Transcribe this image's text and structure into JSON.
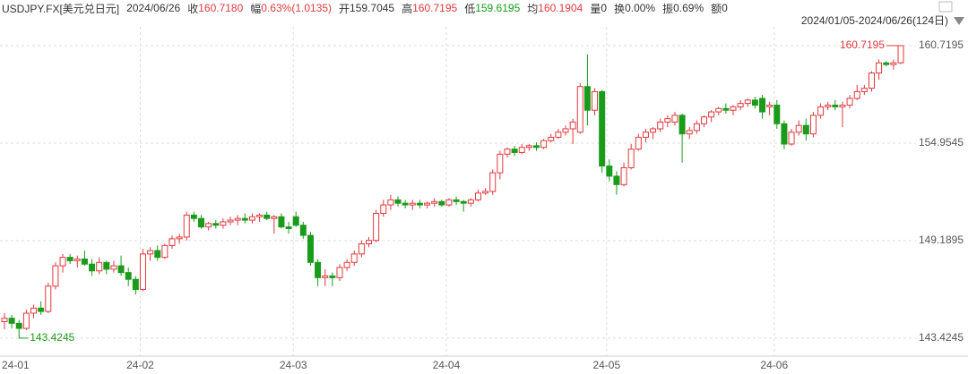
{
  "chart_data": {
    "type": "candlestick",
    "header": {
      "title": "USDJPY.FX[美元兑日元]",
      "date": "2024/06/26",
      "close_label": "收",
      "close": "160.7180",
      "amp_label": "幅",
      "amp": "0.63%(1.0135)",
      "open_label": "开",
      "high_label": "高",
      "low_label": "低",
      "avg_label": "均",
      "avg": "160.1904",
      "vol_label": "量",
      "vol": "0",
      "turn_label": "换",
      "turn": "0.00%",
      "swing_label": "振",
      "swing": "0.69%",
      "amount_label": "额",
      "amount": "0"
    },
    "range_label": "2024/01/05-2024/06/26(124日)",
    "up_color": "#e0393e",
    "down_color": "#1a9b1a",
    "ylim": [
      142.52,
      161.83
    ],
    "yticks": [
      160.7195,
      154.9545,
      149.1895,
      143.4245
    ],
    "grid": true,
    "categories": [
      "24-01",
      null,
      null,
      null,
      null,
      null,
      null,
      null,
      null,
      null,
      null,
      null,
      null,
      null,
      null,
      null,
      null,
      null,
      null,
      "24-02",
      null,
      null,
      null,
      null,
      null,
      null,
      null,
      null,
      null,
      null,
      null,
      null,
      null,
      null,
      null,
      null,
      null,
      null,
      null,
      null,
      "24-03",
      null,
      null,
      null,
      null,
      null,
      null,
      null,
      null,
      null,
      null,
      null,
      null,
      null,
      null,
      null,
      null,
      null,
      null,
      null,
      null,
      "24-04",
      null,
      null,
      null,
      null,
      null,
      null,
      null,
      null,
      null,
      null,
      null,
      null,
      null,
      null,
      null,
      null,
      null,
      null,
      null,
      null,
      null,
      "24-05",
      null,
      null,
      null,
      null,
      null,
      null,
      null,
      null,
      null,
      null,
      null,
      null,
      null,
      null,
      null,
      null,
      null,
      null,
      null,
      null,
      null,
      null,
      "24-06",
      null,
      null,
      null,
      null,
      null,
      null,
      null,
      null,
      null,
      null,
      null,
      null,
      null,
      null,
      null,
      null,
      null
    ],
    "ohlc": [
      [
        144.4,
        144.9,
        143.95,
        144.6
      ],
      [
        144.6,
        144.8,
        144.0,
        144.3
      ],
      [
        144.3,
        144.5,
        143.4245,
        144.0
      ],
      [
        144.0,
        145.1,
        143.9,
        144.9
      ],
      [
        144.9,
        145.4,
        144.6,
        145.2
      ],
      [
        145.2,
        145.6,
        144.8,
        145.0
      ],
      [
        145.0,
        146.7,
        144.9,
        146.5
      ],
      [
        146.5,
        147.9,
        146.3,
        147.7
      ],
      [
        147.7,
        148.4,
        147.3,
        148.2
      ],
      [
        148.2,
        148.4,
        147.8,
        148.0
      ],
      [
        148.0,
        148.3,
        147.6,
        148.1
      ],
      [
        148.1,
        148.6,
        147.7,
        147.8
      ],
      [
        147.8,
        148.1,
        147.1,
        147.4
      ],
      [
        147.4,
        148.2,
        147.2,
        147.9
      ],
      [
        147.9,
        148.0,
        147.2,
        147.5
      ],
      [
        147.5,
        148.0,
        147.3,
        147.7
      ],
      [
        147.7,
        148.3,
        147.1,
        147.3
      ],
      [
        147.3,
        147.6,
        146.5,
        146.9
      ],
      [
        146.9,
        147.1,
        146.0,
        146.3
      ],
      [
        146.3,
        148.7,
        146.2,
        148.4
      ],
      [
        148.4,
        148.8,
        148.0,
        148.6
      ],
      [
        148.6,
        148.9,
        148.0,
        148.2
      ],
      [
        148.2,
        149.0,
        148.1,
        148.9
      ],
      [
        148.9,
        149.5,
        148.7,
        149.3
      ],
      [
        149.3,
        149.6,
        149.0,
        149.4
      ],
      [
        149.4,
        150.9,
        149.2,
        150.7
      ],
      [
        150.7,
        150.9,
        150.3,
        150.5
      ],
      [
        150.5,
        150.7,
        149.9,
        150.0
      ],
      [
        150.0,
        150.3,
        149.8,
        150.2
      ],
      [
        150.2,
        150.4,
        149.9,
        150.1
      ],
      [
        150.1,
        150.5,
        149.9,
        150.3
      ],
      [
        150.3,
        150.6,
        150.1,
        150.4
      ],
      [
        150.4,
        150.7,
        150.1,
        150.5
      ],
      [
        150.5,
        150.8,
        150.2,
        150.4
      ],
      [
        150.4,
        150.8,
        150.2,
        150.6
      ],
      [
        150.6,
        150.8,
        150.3,
        150.7
      ],
      [
        150.7,
        150.9,
        150.4,
        150.5
      ],
      [
        150.5,
        150.7,
        149.6,
        150.6
      ],
      [
        150.6,
        150.8,
        149.9,
        150.0
      ],
      [
        150.0,
        150.3,
        149.6,
        149.9
      ],
      [
        150.6,
        150.9,
        150.0,
        150.1
      ],
      [
        150.1,
        150.3,
        149.3,
        149.5
      ],
      [
        149.5,
        149.7,
        147.7,
        147.9
      ],
      [
        147.9,
        148.1,
        146.5,
        147.0
      ],
      [
        147.0,
        147.5,
        146.5,
        147.1
      ],
      [
        147.1,
        147.3,
        146.5,
        147.0
      ],
      [
        147.0,
        147.8,
        146.8,
        147.6
      ],
      [
        147.6,
        148.1,
        147.4,
        147.9
      ],
      [
        147.9,
        148.6,
        147.7,
        148.4
      ],
      [
        148.4,
        149.2,
        148.2,
        149.0
      ],
      [
        149.0,
        149.4,
        148.8,
        149.2
      ],
      [
        149.2,
        151.0,
        149.1,
        150.8
      ],
      [
        150.8,
        151.6,
        150.6,
        151.3
      ],
      [
        151.3,
        151.9,
        151.0,
        151.6
      ],
      [
        151.6,
        151.8,
        151.2,
        151.4
      ],
      [
        151.4,
        151.6,
        151.1,
        151.3
      ],
      [
        151.3,
        151.6,
        151.0,
        151.4
      ],
      [
        151.4,
        151.6,
        151.1,
        151.3
      ],
      [
        151.3,
        151.5,
        151.1,
        151.4
      ],
      [
        151.4,
        151.7,
        151.2,
        151.5
      ],
      [
        151.5,
        151.6,
        151.2,
        151.3
      ],
      [
        151.3,
        151.7,
        151.2,
        151.6
      ],
      [
        151.6,
        151.8,
        151.3,
        151.5
      ],
      [
        151.5,
        151.6,
        150.9,
        151.4
      ],
      [
        151.4,
        151.7,
        151.2,
        151.6
      ],
      [
        151.6,
        152.2,
        151.5,
        152.0
      ],
      [
        152.0,
        152.3,
        151.9,
        152.1
      ],
      [
        152.1,
        153.4,
        151.9,
        153.2
      ],
      [
        153.2,
        154.5,
        152.8,
        154.3
      ],
      [
        154.3,
        154.7,
        154.1,
        154.6
      ],
      [
        154.6,
        154.8,
        154.2,
        154.4
      ],
      [
        154.4,
        154.9,
        154.3,
        154.7
      ],
      [
        154.7,
        154.9,
        154.5,
        154.8
      ],
      [
        154.8,
        155.0,
        154.5,
        154.7
      ],
      [
        154.7,
        155.2,
        154.6,
        155.1
      ],
      [
        155.1,
        155.5,
        155.0,
        155.3
      ],
      [
        155.3,
        155.8,
        155.2,
        155.6
      ],
      [
        155.6,
        156.0,
        155.4,
        155.8
      ],
      [
        155.8,
        156.4,
        154.9,
        156.2
      ],
      [
        155.6,
        158.5,
        155.5,
        158.3
      ],
      [
        158.3,
        160.2,
        156.0,
        156.9
      ],
      [
        156.9,
        158.2,
        156.6,
        158.0
      ],
      [
        158.0,
        158.1,
        153.2,
        153.6
      ],
      [
        153.6,
        154.0,
        152.7,
        153.0
      ],
      [
        153.0,
        153.3,
        151.9,
        152.5
      ],
      [
        152.5,
        153.8,
        152.4,
        153.5
      ],
      [
        153.5,
        154.9,
        153.4,
        154.6
      ],
      [
        154.6,
        155.5,
        154.5,
        155.3
      ],
      [
        155.3,
        155.8,
        155.0,
        155.6
      ],
      [
        155.6,
        155.9,
        155.2,
        155.8
      ],
      [
        155.8,
        156.4,
        155.6,
        156.2
      ],
      [
        156.2,
        156.6,
        155.9,
        156.4
      ],
      [
        156.2,
        156.8,
        156.0,
        156.6
      ],
      [
        156.6,
        156.7,
        153.8,
        155.5
      ],
      [
        155.5,
        155.9,
        155.2,
        155.7
      ],
      [
        155.7,
        156.3,
        155.5,
        156.1
      ],
      [
        156.1,
        156.6,
        155.9,
        156.5
      ],
      [
        156.5,
        156.9,
        156.2,
        156.8
      ],
      [
        156.8,
        157.1,
        156.6,
        157.0
      ],
      [
        157.0,
        157.3,
        156.7,
        156.9
      ],
      [
        156.9,
        157.2,
        156.6,
        157.1
      ],
      [
        157.1,
        157.5,
        156.9,
        157.3
      ],
      [
        157.3,
        157.6,
        157.1,
        157.5
      ],
      [
        157.5,
        157.7,
        157.0,
        157.2
      ],
      [
        157.6,
        157.8,
        156.4,
        156.8
      ],
      [
        157.1,
        157.4,
        156.6,
        157.2
      ],
      [
        157.2,
        157.5,
        155.8,
        156.1
      ],
      [
        156.1,
        156.3,
        154.6,
        154.9
      ],
      [
        154.9,
        155.8,
        154.8,
        155.6
      ],
      [
        155.6,
        156.3,
        155.4,
        156.0
      ],
      [
        156.0,
        156.4,
        155.1,
        155.5
      ],
      [
        155.5,
        156.8,
        155.3,
        156.6
      ],
      [
        156.6,
        157.3,
        156.4,
        157.1
      ],
      [
        157.1,
        157.4,
        156.9,
        157.2
      ],
      [
        157.2,
        157.5,
        156.9,
        157.1
      ],
      [
        157.1,
        157.4,
        155.9,
        157.2
      ],
      [
        157.2,
        157.8,
        157.0,
        157.6
      ],
      [
        157.6,
        158.4,
        157.5,
        158.0
      ],
      [
        158.0,
        158.4,
        157.8,
        158.2
      ],
      [
        158.2,
        159.2,
        158.0,
        159.1
      ],
      [
        159.1,
        159.9,
        158.7,
        159.7
      ],
      [
        159.7,
        159.8,
        159.5,
        159.6
      ],
      [
        159.6,
        159.9,
        159.3,
        159.7
      ],
      [
        159.7045,
        160.7195,
        159.6195,
        160.718
      ]
    ]
  }
}
